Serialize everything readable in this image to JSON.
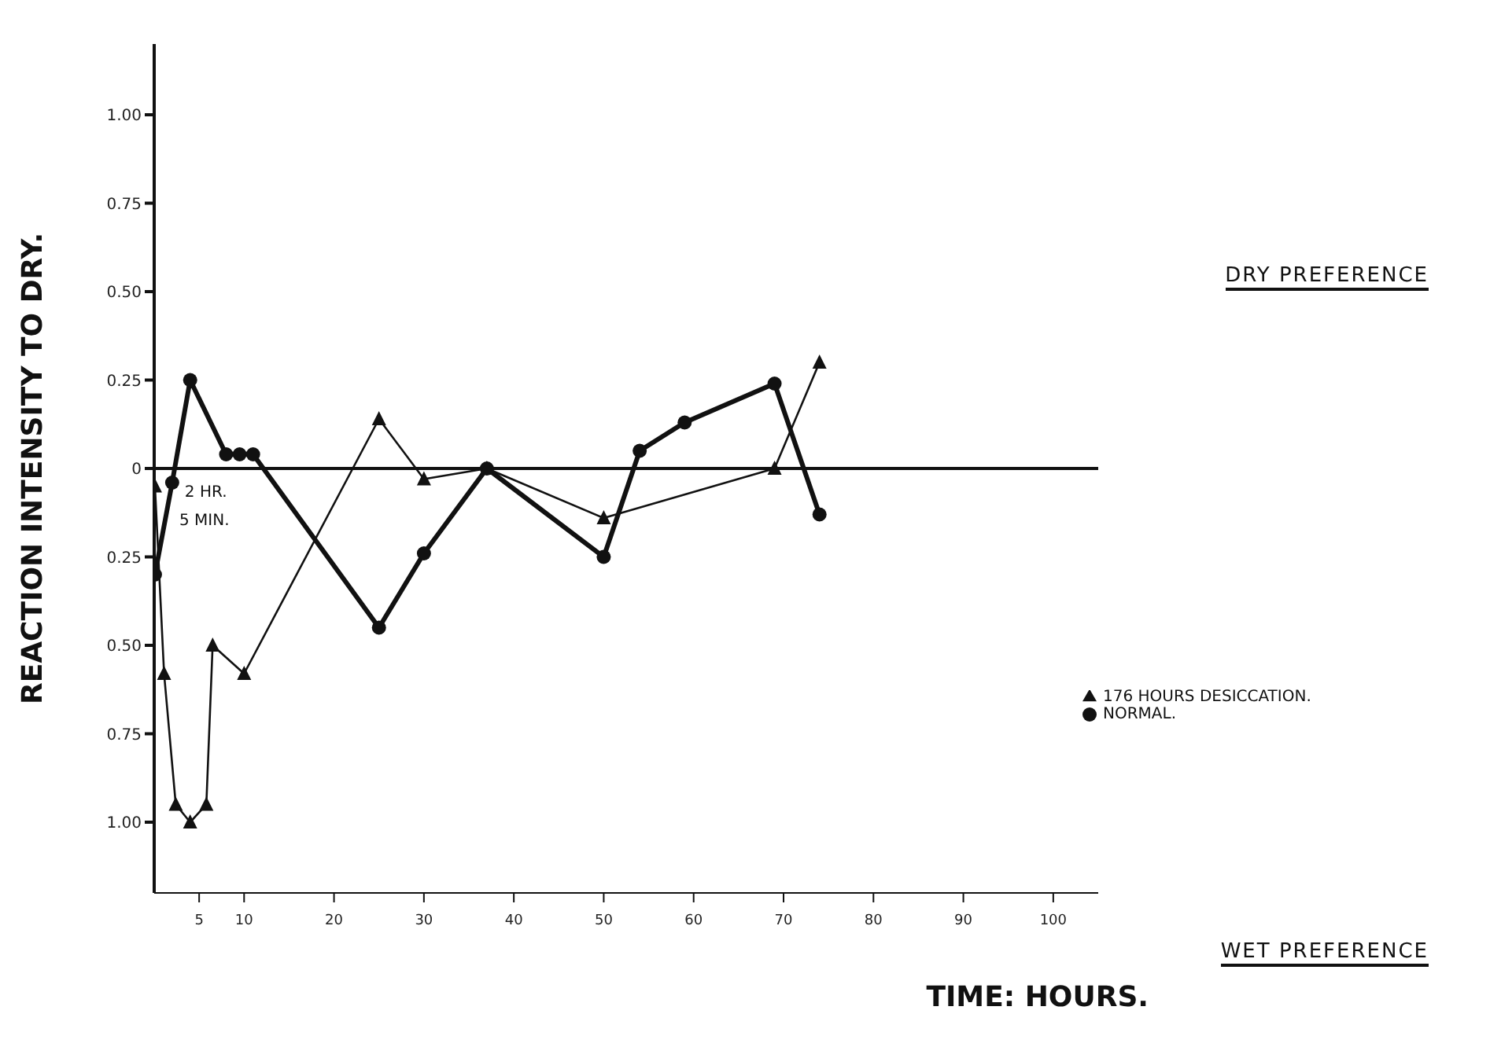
{
  "chart_data": {
    "type": "line",
    "xlabel": "TIME: HOURS.",
    "ylabel": "REACTION INTENSITY TO DRY.",
    "xlim": [
      0,
      105
    ],
    "xticks": [
      5,
      10,
      20,
      30,
      40,
      50,
      60,
      70,
      80,
      90,
      100
    ],
    "ylim": [
      -1.2,
      1.2
    ],
    "yticks": [
      {
        "value": 1,
        "label": "1.00"
      },
      {
        "value": 0.75,
        "label": "0.75"
      },
      {
        "value": 0.5,
        "label": "0.50"
      },
      {
        "value": 0.25,
        "label": "0.25"
      },
      0,
      {
        "value": -0.25,
        "label": "0.25"
      },
      {
        "value": -0.5,
        "label": "0.50"
      },
      {
        "value": -0.75,
        "label": "0.75"
      },
      {
        "value": -1,
        "label": "1.00"
      }
    ],
    "series": [
      {
        "name": "NORMAL.",
        "color": "#111111",
        "marker": "circle",
        "x": [
          0.083,
          2,
          4,
          8,
          9.5,
          11,
          25,
          30,
          37,
          50,
          54,
          59,
          69,
          74
        ],
        "values": [
          -0.3,
          -0.04,
          0.25,
          0.04,
          0.04,
          0.04,
          -0.45,
          -0.24,
          0,
          -0.25,
          0.05,
          0.13,
          0.24,
          -0.13
        ]
      },
      {
        "name": "176 HOURS DESICCATION.",
        "color": "#111111",
        "marker": "triangle",
        "x": [
          0.083,
          1.1,
          2.4,
          4,
          5.8,
          6.5,
          10,
          25,
          30,
          37,
          50,
          69,
          74
        ],
        "values": [
          -0.05,
          -0.58,
          -0.95,
          -1,
          -0.95,
          -0.5,
          -0.58,
          0.14,
          -0.03,
          0,
          -0.14,
          0,
          0.3
        ]
      }
    ],
    "ref_lines": [
      {
        "axis": "y",
        "value": 0
      }
    ],
    "annotations": [
      "DRY PREFERENCE",
      "WET PREFERENCE",
      "5 MIN.",
      {
        "text": "2 HR.",
        "x": 2,
        "y": 0
      }
    ],
    "grid": false,
    "legend": "right",
    "line_style": "solid"
  }
}
